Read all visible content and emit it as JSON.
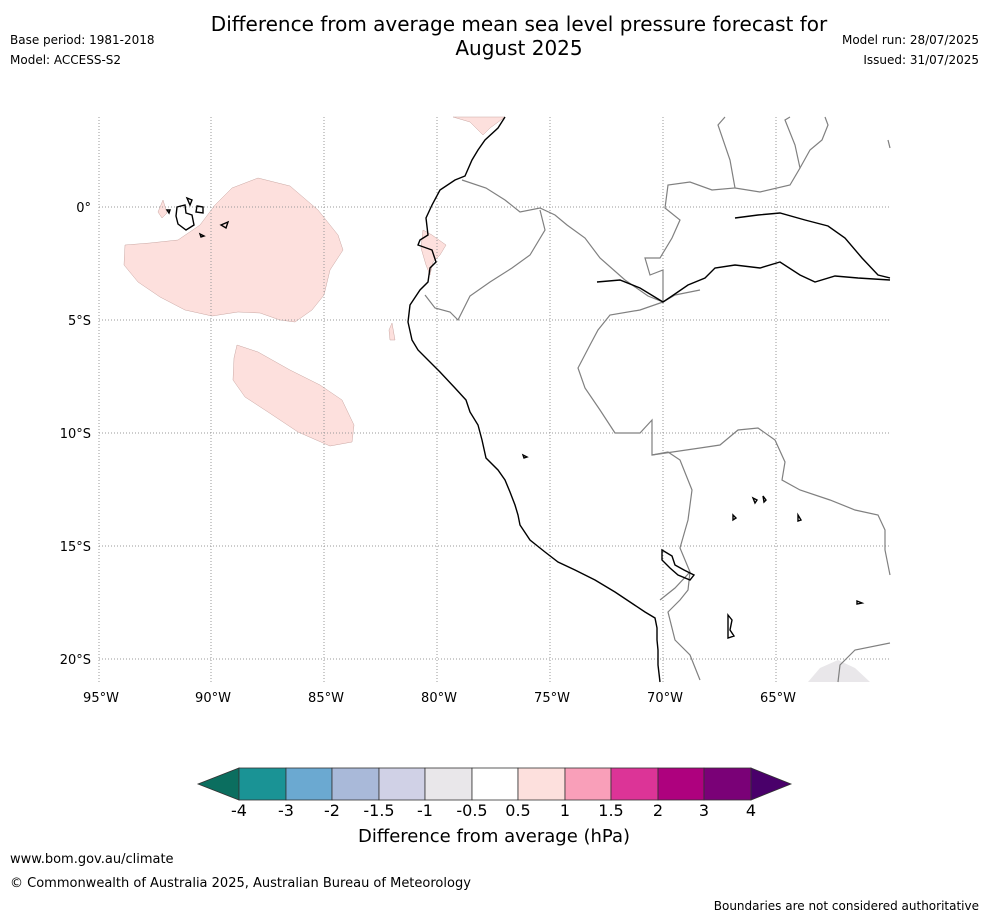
{
  "header": {
    "title_line1": "Difference from average mean sea level pressure forecast for",
    "title_line2": "August 2025",
    "base_period": "Base period: 1981-2018",
    "model": "Model: ACCESS-S2",
    "model_run": "Model run: 28/07/2025",
    "issued": "Issued: 31/07/2025"
  },
  "map": {
    "lat_labels": [
      "0°",
      "5°S",
      "10°S",
      "15°S",
      "20°S"
    ],
    "lon_labels": [
      "95°W",
      "90°W",
      "85°W",
      "80°W",
      "75°W",
      "70°W",
      "65°W"
    ],
    "anomaly_fill_color": "#fde0dd",
    "neg_fill_color": "#e9e7ea",
    "coast_color": "#000000",
    "border_color": "#808080"
  },
  "colorbar": {
    "label": "Difference from average (hPa)",
    "ticks": [
      "-4",
      "-3",
      "-2",
      "-1.5",
      "-1",
      "-0.5",
      "0.5",
      "1",
      "1.5",
      "2",
      "3",
      "4"
    ],
    "colors": [
      "#0b6e5f",
      "#1a9395",
      "#6ba9d1",
      "#a9b9d9",
      "#d0d1e6",
      "#e9e7ea",
      "#ffffff",
      "#fde0dd",
      "#f99fb9",
      "#dc3497",
      "#ae017e",
      "#7a0177",
      "#49006a"
    ]
  },
  "footer": {
    "url": "www.bom.gov.au/climate",
    "copyright": "© Commonwealth of Australia 2025, Australian Bureau of Meteorology",
    "note": "Boundaries are not considered authoritative"
  }
}
